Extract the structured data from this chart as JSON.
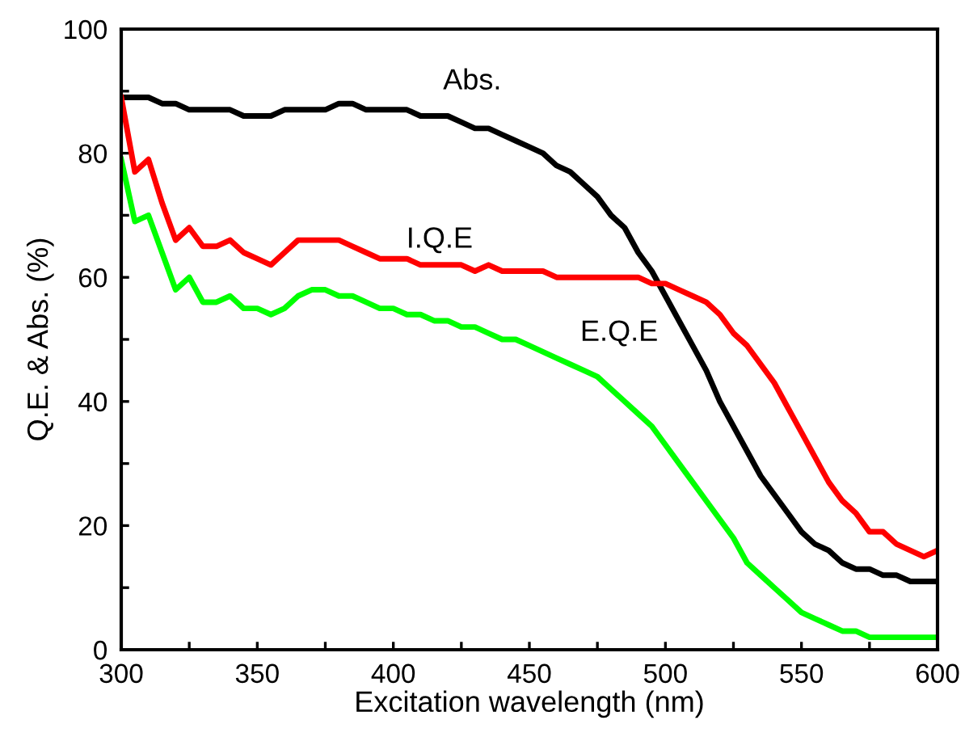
{
  "chart_data": {
    "type": "line",
    "xlabel": "Excitation wavelength (nm)",
    "ylabel": "Q.E. & Abs. (%)",
    "x": [
      300,
      305,
      310,
      315,
      320,
      325,
      330,
      335,
      340,
      345,
      350,
      355,
      360,
      365,
      370,
      375,
      380,
      385,
      390,
      395,
      400,
      405,
      410,
      415,
      420,
      425,
      430,
      435,
      440,
      445,
      450,
      455,
      460,
      465,
      470,
      475,
      480,
      485,
      490,
      495,
      500,
      505,
      510,
      515,
      520,
      525,
      530,
      535,
      540,
      545,
      550,
      555,
      560,
      565,
      570,
      575,
      580,
      585,
      590,
      595,
      600
    ],
    "series": [
      {
        "name": "Abs.",
        "color": "#000000",
        "values": [
          89,
          89,
          89,
          88,
          88,
          87,
          87,
          87,
          87,
          86,
          86,
          86,
          87,
          87,
          87,
          87,
          88,
          88,
          87,
          87,
          87,
          87,
          86,
          86,
          86,
          85,
          84,
          84,
          83,
          82,
          81,
          80,
          78,
          77,
          75,
          73,
          70,
          68,
          64,
          61,
          57,
          53,
          49,
          45,
          40,
          36,
          32,
          28,
          25,
          22,
          19,
          17,
          16,
          14,
          13,
          13,
          12,
          12,
          11,
          11,
          11
        ]
      },
      {
        "name": "I.Q.E",
        "color": "#ff0000",
        "values": [
          89,
          77,
          79,
          72,
          66,
          68,
          65,
          65,
          66,
          64,
          63,
          62,
          64,
          66,
          66,
          66,
          66,
          65,
          64,
          63,
          63,
          63,
          62,
          62,
          62,
          62,
          61,
          62,
          61,
          61,
          61,
          61,
          60,
          60,
          60,
          60,
          60,
          60,
          60,
          59,
          59,
          58,
          57,
          56,
          54,
          51,
          49,
          46,
          43,
          39,
          35,
          31,
          27,
          24,
          22,
          19,
          19,
          17,
          16,
          15,
          16
        ]
      },
      {
        "name": "E.Q.E",
        "color": "#00ff00",
        "values": [
          79,
          69,
          70,
          64,
          58,
          60,
          56,
          56,
          57,
          55,
          55,
          54,
          55,
          57,
          58,
          58,
          57,
          57,
          56,
          55,
          55,
          54,
          54,
          53,
          53,
          52,
          52,
          51,
          50,
          50,
          49,
          48,
          47,
          46,
          45,
          44,
          42,
          40,
          38,
          36,
          33,
          30,
          27,
          24,
          21,
          18,
          14,
          12,
          10,
          8,
          6,
          5,
          4,
          3,
          3,
          2,
          2,
          2,
          2,
          2,
          2
        ]
      }
    ],
    "xlim": [
      300,
      600
    ],
    "ylim": [
      0,
      100
    ],
    "xticks": [
      300,
      {
        "value": 325,
        "label": null
      },
      350,
      {
        "value": 375,
        "label": null
      },
      400,
      {
        "value": 425,
        "label": null
      },
      450,
      {
        "value": 475,
        "label": null
      },
      500,
      {
        "value": 525,
        "label": null
      },
      550,
      {
        "value": 575,
        "label": null
      },
      600
    ],
    "yticks": [
      0,
      {
        "value": 10,
        "label": null
      },
      20,
      {
        "value": 30,
        "label": null
      },
      40,
      {
        "value": 50,
        "label": null
      },
      60,
      {
        "value": 70,
        "label": null
      },
      80,
      {
        "value": 90,
        "label": null
      },
      100
    ],
    "grid": false,
    "legend": false,
    "marker": "none",
    "line_style": "solid"
  }
}
